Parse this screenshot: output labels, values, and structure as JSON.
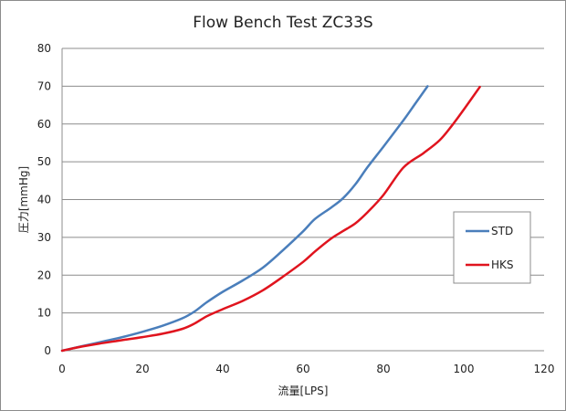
{
  "chart_data": {
    "type": "line",
    "title": "Flow Bench Test  ZC33S",
    "xlabel": "流量[LPS]",
    "ylabel": "圧力[mmHg]",
    "xlim": [
      0,
      120
    ],
    "ylim": [
      0,
      80
    ],
    "xticks": [
      0,
      20,
      40,
      60,
      80,
      100,
      120
    ],
    "yticks": [
      0,
      10,
      20,
      30,
      40,
      50,
      60,
      70,
      80
    ],
    "grid": "horizontal",
    "legend_position": "right",
    "series": [
      {
        "name": "STD",
        "color": "#4a7ebb",
        "points": [
          [
            0,
            0
          ],
          [
            5,
            1.2
          ],
          [
            10,
            2.4
          ],
          [
            15,
            3.6
          ],
          [
            20,
            5
          ],
          [
            25,
            6.6
          ],
          [
            30,
            8.6
          ],
          [
            33,
            10.4
          ],
          [
            36,
            12.8
          ],
          [
            40,
            15.6
          ],
          [
            45,
            18.6
          ],
          [
            50,
            22
          ],
          [
            55,
            26.6
          ],
          [
            60,
            31.6
          ],
          [
            63,
            34.9
          ],
          [
            67,
            37.9
          ],
          [
            70,
            40.4
          ],
          [
            73,
            44
          ],
          [
            76,
            48.5
          ],
          [
            80,
            54
          ],
          [
            85,
            61
          ],
          [
            88,
            65.5
          ],
          [
            91,
            70
          ]
        ]
      },
      {
        "name": "HKS",
        "color": "#e0141e",
        "points": [
          [
            0,
            0
          ],
          [
            5,
            1.1
          ],
          [
            10,
            2
          ],
          [
            15,
            2.8
          ],
          [
            20,
            3.6
          ],
          [
            25,
            4.5
          ],
          [
            30,
            5.8
          ],
          [
            33,
            7.2
          ],
          [
            36,
            9.1
          ],
          [
            40,
            11
          ],
          [
            45,
            13.2
          ],
          [
            50,
            16
          ],
          [
            55,
            19.6
          ],
          [
            60,
            23.5
          ],
          [
            63,
            26.3
          ],
          [
            67,
            29.7
          ],
          [
            70,
            31.7
          ],
          [
            73,
            33.7
          ],
          [
            76,
            36.6
          ],
          [
            80,
            41.2
          ],
          [
            85,
            48.5
          ],
          [
            90,
            52.3
          ],
          [
            94,
            55.7
          ],
          [
            97,
            59.5
          ],
          [
            100,
            63.8
          ],
          [
            104,
            69.8
          ]
        ]
      }
    ]
  }
}
